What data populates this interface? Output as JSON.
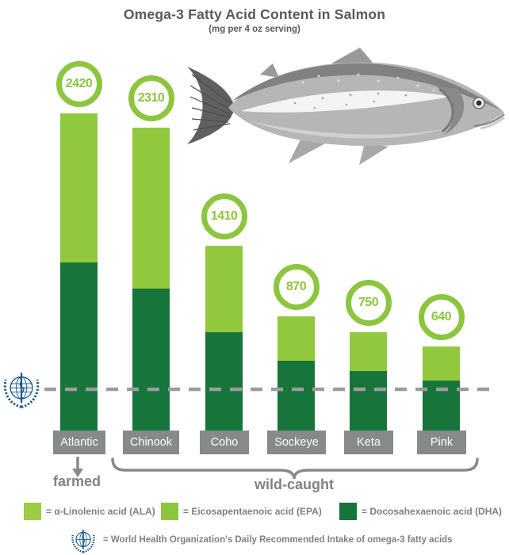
{
  "title": "Omega-3 Fatty Acid Content in Salmon",
  "subtitle": "(mg per 4 oz serving)",
  "colors": {
    "light_green": "#92C83E",
    "ala_green": "#9CCB44",
    "epa_green": "#8CC63F",
    "dark_green": "#17753C",
    "circle_green": "#8CC63F",
    "label_box_gray": "#87898B",
    "title_gray": "#58595B",
    "text_gray": "#7E8083",
    "dashed_line_gray": "#9A9C9E",
    "who_blue": "#1E5B8D",
    "fish_gray": "#B5B6B7"
  },
  "chart_data": {
    "type": "bar",
    "stacked": true,
    "title": "Omega-3 Fatty Acid Content in Salmon",
    "subtitle": "(mg per 4 oz serving)",
    "unit": "mg per 4 oz serving",
    "categories": [
      "Atlantic",
      "Chinook",
      "Coho",
      "Sockeye",
      "Keta",
      "Pink"
    ],
    "totals": [
      2420,
      2310,
      1410,
      870,
      750,
      640
    ],
    "value_labels": [
      "2420",
      "2310",
      "1410",
      "870",
      "750",
      "640"
    ],
    "series": [
      {
        "name": "ALA + EPA (light green segment, estimated)",
        "color_key": "light_green",
        "values": [
          1140,
          1230,
          660,
          335,
          295,
          260
        ]
      },
      {
        "name": "DHA (dark green segment, estimated)",
        "color_key": "dark_green",
        "values": [
          1280,
          1080,
          750,
          535,
          455,
          380
        ]
      }
    ],
    "legend": [
      {
        "label": "= α-Linolenic acid (ALA)",
        "color_key": "ala_green"
      },
      {
        "label": "= Eicosapentaenoic acid (EPA)",
        "color_key": "epa_green"
      },
      {
        "label": "= Docosahexaenoic acid (DHA)",
        "color_key": "dark_green"
      }
    ],
    "group_brackets": [
      {
        "label": "farmed",
        "categories": [
          "Atlantic"
        ]
      },
      {
        "label": "wild-caught",
        "categories": [
          "Chinook",
          "Coho",
          "Sockeye",
          "Keta",
          "Pink"
        ]
      }
    ],
    "reference_line": {
      "source_icon": "who-emblem",
      "style": "gray dashed",
      "value_mg_estimate": 300
    },
    "footnote": "= World Health Organization's Daily Recommended Intake of omega-3 fatty acids",
    "grid": false,
    "legend_position": "bottom"
  },
  "groups": {
    "farmed_label": "farmed",
    "wild_label": "wild-caught"
  },
  "footnote_label": "= World Health Organization's Daily Recommended Intake of omega-3 fatty acids"
}
